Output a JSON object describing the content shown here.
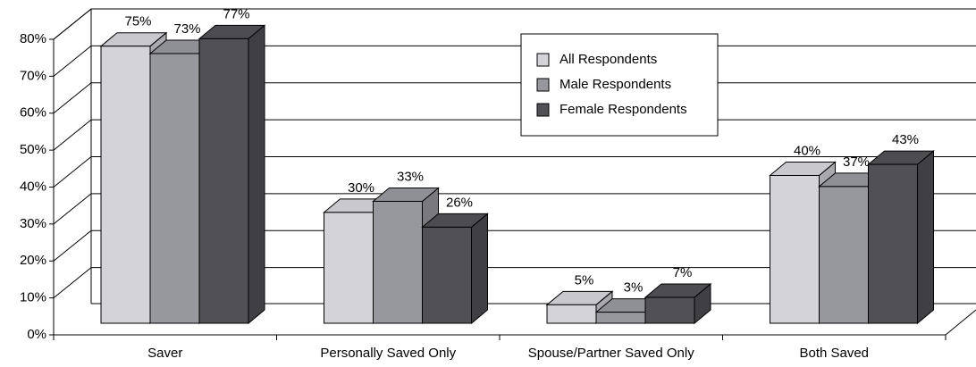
{
  "chart_data": {
    "type": "bar3d",
    "categories": [
      "Saver",
      "Personally Saved Only",
      "Spouse/Partner Saved Only",
      "Both Saved"
    ],
    "series": [
      {
        "name": "All Respondents",
        "color": "#d3d3d8",
        "values": [
          75,
          30,
          5,
          40
        ],
        "value_labels": [
          "75%",
          "30%",
          "5%",
          "40%"
        ]
      },
      {
        "name": "Male Respondents",
        "color": "#97979e",
        "values": [
          73,
          33,
          3,
          37
        ],
        "value_labels": [
          "73%",
          "33%",
          "3%",
          "37%"
        ]
      },
      {
        "name": "Female Respondents",
        "color": "#505055",
        "values": [
          77,
          26,
          7,
          43
        ],
        "value_labels": [
          "77%",
          "26%",
          "7%",
          "43%"
        ]
      }
    ],
    "ylim": [
      0,
      80
    ],
    "yticks": [
      {
        "value": 0,
        "label": "0%"
      },
      {
        "value": 10,
        "label": "10%"
      },
      {
        "value": 20,
        "label": "20%"
      },
      {
        "value": 30,
        "label": "30%"
      },
      {
        "value": 40,
        "label": "40%"
      },
      {
        "value": 50,
        "label": "50%"
      },
      {
        "value": 60,
        "label": "60%"
      },
      {
        "value": 70,
        "label": "70%"
      },
      {
        "value": 80,
        "label": "80%"
      }
    ],
    "grid": true
  }
}
